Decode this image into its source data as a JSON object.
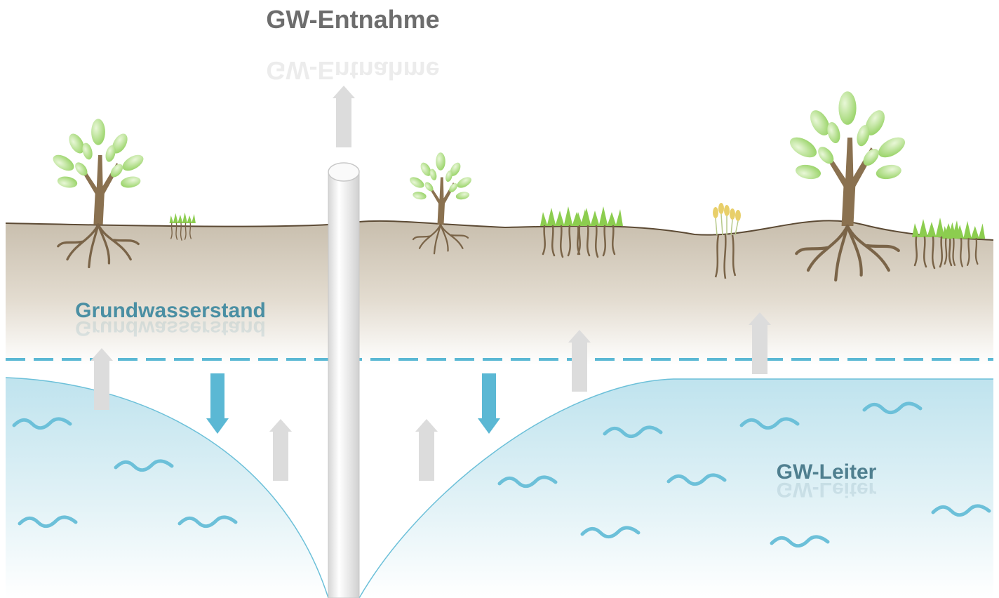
{
  "diagram": {
    "title": "GW-Entnahme",
    "labels": {
      "water_table": "Grundwasserstand",
      "aquifer": "GW-Leiter"
    }
  }
}
